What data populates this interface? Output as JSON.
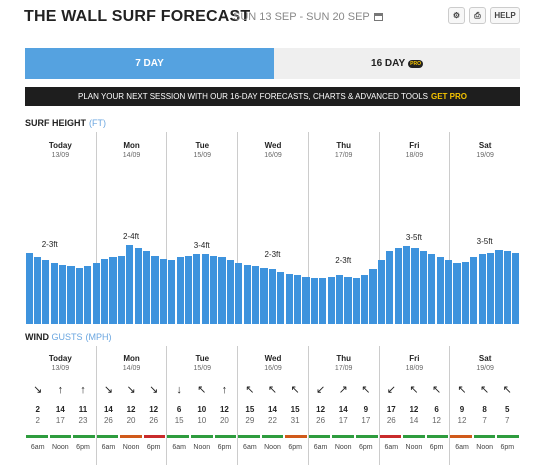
{
  "header": {
    "title": "THE WALL SURF FORECAST",
    "date_range": "SUN 13 SEP - SUN 20 SEP",
    "help_label": "HELP"
  },
  "tabs": [
    {
      "label": "7 DAY",
      "active": true
    },
    {
      "label": "16 DAY",
      "badge": "PRO",
      "active": false
    }
  ],
  "promo": {
    "text": "PLAN YOUR NEXT SESSION WITH OUR 16-DAY FORECASTS, CHARTS & ADVANCED TOOLS",
    "cta": "GET PRO"
  },
  "surf": {
    "label": "SURF HEIGHT",
    "unit": "(FT)"
  },
  "wind": {
    "label": "WIND",
    "gusts": "GUSTS",
    "unit": "(MPH)",
    "entries": [
      {
        "speed": "2",
        "gust": "2",
        "arrow": "↘",
        "color": "#2e9c3e"
      },
      {
        "speed": "14",
        "gust": "17",
        "arrow": "↑",
        "color": "#2e9c3e"
      },
      {
        "speed": "11",
        "gust": "23",
        "arrow": "↑",
        "color": "#2e9c3e"
      },
      {
        "speed": "14",
        "gust": "26",
        "arrow": "↘",
        "color": "#2e9c3e"
      },
      {
        "speed": "12",
        "gust": "20",
        "arrow": "↘",
        "color": "#d05a1a"
      },
      {
        "speed": "12",
        "gust": "26",
        "arrow": "↘",
        "color": "#c92b2b"
      },
      {
        "speed": "6",
        "gust": "15",
        "arrow": "↓",
        "color": "#2e9c3e"
      },
      {
        "speed": "10",
        "gust": "10",
        "arrow": "↖",
        "color": "#2e9c3e"
      },
      {
        "speed": "12",
        "gust": "20",
        "arrow": "↑",
        "color": "#2e9c3e"
      },
      {
        "speed": "15",
        "gust": "29",
        "arrow": "↖",
        "color": "#2e9c3e"
      },
      {
        "speed": "14",
        "gust": "22",
        "arrow": "↖",
        "color": "#2e9c3e"
      },
      {
        "speed": "15",
        "gust": "31",
        "arrow": "↖",
        "color": "#d05a1a"
      },
      {
        "speed": "12",
        "gust": "26",
        "arrow": "↙",
        "color": "#2e9c3e"
      },
      {
        "speed": "14",
        "gust": "17",
        "arrow": "↗",
        "color": "#2e9c3e"
      },
      {
        "speed": "9",
        "gust": "17",
        "arrow": "↖",
        "color": "#2e9c3e"
      },
      {
        "speed": "17",
        "gust": "26",
        "arrow": "↙",
        "color": "#c92b2b"
      },
      {
        "speed": "12",
        "gust": "14",
        "arrow": "↖",
        "color": "#2e9c3e"
      },
      {
        "speed": "6",
        "gust": "12",
        "arrow": "↖",
        "color": "#2e9c3e"
      },
      {
        "speed": "9",
        "gust": "12",
        "arrow": "↖",
        "color": "#d05a1a"
      },
      {
        "speed": "8",
        "gust": "7",
        "arrow": "↖",
        "color": "#2e9c3e"
      },
      {
        "speed": "5",
        "gust": "7",
        "arrow": "↖",
        "color": "#2e9c3e"
      }
    ]
  },
  "days": [
    {
      "name": "Today",
      "date": "13/09",
      "height": "2-3ft"
    },
    {
      "name": "Mon",
      "date": "14/09",
      "height": "2-4ft"
    },
    {
      "name": "Tue",
      "date": "15/09",
      "height": "3-4ft"
    },
    {
      "name": "Wed",
      "date": "16/09",
      "height": "2-3ft"
    },
    {
      "name": "Thu",
      "date": "17/09",
      "height": "2-3ft"
    },
    {
      "name": "Fri",
      "date": "18/09",
      "height": "3-5ft"
    },
    {
      "name": "Sat",
      "date": "19/09",
      "height": "3-5ft"
    }
  ],
  "surf_bars": [
    0.47,
    0.44,
    0.42,
    0.4,
    0.39,
    0.38,
    0.37,
    0.38,
    0.4,
    0.43,
    0.44,
    0.45,
    0.52,
    0.5,
    0.48,
    0.45,
    0.43,
    0.42,
    0.44,
    0.45,
    0.46,
    0.46,
    0.45,
    0.44,
    0.42,
    0.4,
    0.39,
    0.38,
    0.37,
    0.36,
    0.34,
    0.33,
    0.32,
    0.31,
    0.3,
    0.3,
    0.31,
    0.32,
    0.31,
    0.3,
    0.32,
    0.36,
    0.42,
    0.48,
    0.5,
    0.51,
    0.5,
    0.48,
    0.46,
    0.44,
    0.42,
    0.4,
    0.41,
    0.44,
    0.46,
    0.47,
    0.49,
    0.48,
    0.47
  ],
  "wind_times": [
    "6am",
    "Noon",
    "6pm"
  ],
  "colors": {
    "accent": "#55a2e0",
    "bar": "#3e93dd",
    "pro": "#f5c400"
  }
}
